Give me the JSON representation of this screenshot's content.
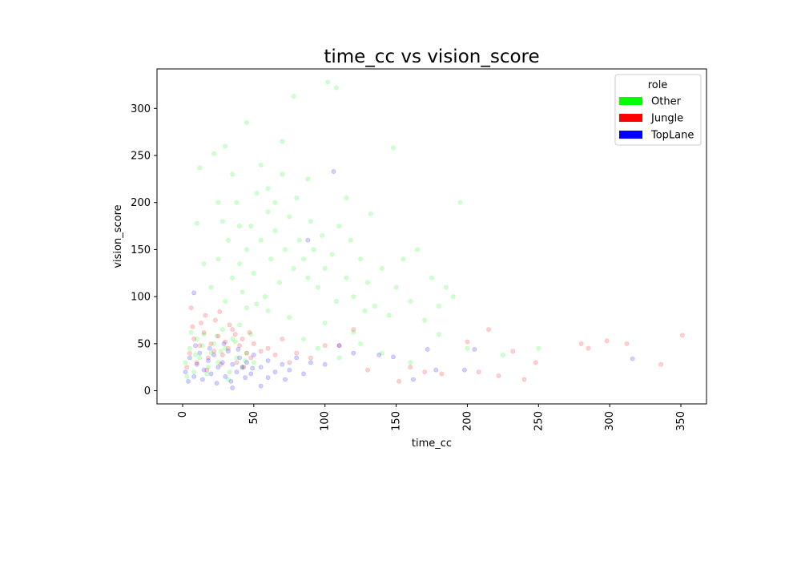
{
  "chart_data": {
    "type": "scatter",
    "title": "time_cc vs vision_score",
    "xlabel": "time_cc",
    "ylabel": "vision_score",
    "xlim": [
      -18,
      368
    ],
    "ylim": [
      -14,
      342
    ],
    "xticks": [
      0,
      50,
      100,
      150,
      200,
      250,
      300,
      350
    ],
    "yticks": [
      0,
      50,
      100,
      150,
      200,
      250,
      300
    ],
    "grid": false,
    "legend": {
      "title": "role",
      "placement": "top-right",
      "entries": [
        "Other",
        "Jungle",
        "TopLane"
      ]
    },
    "series": [
      {
        "name": "Other",
        "color": "#00ff00",
        "points": [
          [
            2,
            30
          ],
          [
            5,
            45
          ],
          [
            8,
            20
          ],
          [
            10,
            55
          ],
          [
            12,
            35
          ],
          [
            15,
            60
          ],
          [
            18,
            25
          ],
          [
            20,
            40
          ],
          [
            22,
            50
          ],
          [
            25,
            30
          ],
          [
            28,
            65
          ],
          [
            30,
            45
          ],
          [
            33,
            20
          ],
          [
            35,
            55
          ],
          [
            38,
            35
          ],
          [
            40,
            70
          ],
          [
            42,
            25
          ],
          [
            45,
            40
          ],
          [
            48,
            60
          ],
          [
            50,
            30
          ],
          [
            3,
            15
          ],
          [
            6,
            62
          ],
          [
            9,
            38
          ],
          [
            14,
            48
          ],
          [
            17,
            18
          ],
          [
            24,
            58
          ],
          [
            27,
            42
          ],
          [
            32,
            12
          ],
          [
            37,
            52
          ],
          [
            44,
            32
          ],
          [
            20,
            110
          ],
          [
            25,
            140
          ],
          [
            28,
            180
          ],
          [
            30,
            95
          ],
          [
            32,
            160
          ],
          [
            35,
            120
          ],
          [
            38,
            200
          ],
          [
            40,
            135
          ],
          [
            42,
            105
          ],
          [
            45,
            150
          ],
          [
            48,
            175
          ],
          [
            50,
            125
          ],
          [
            52,
            210
          ],
          [
            55,
            160
          ],
          [
            58,
            100
          ],
          [
            60,
            190
          ],
          [
            62,
            140
          ],
          [
            65,
            170
          ],
          [
            68,
            115
          ],
          [
            70,
            230
          ],
          [
            72,
            150
          ],
          [
            75,
            185
          ],
          [
            78,
            130
          ],
          [
            80,
            205
          ],
          [
            82,
            160
          ],
          [
            85,
            140
          ],
          [
            88,
            120
          ],
          [
            90,
            180
          ],
          [
            92,
            150
          ],
          [
            95,
            110
          ],
          [
            98,
            165
          ],
          [
            100,
            130
          ],
          [
            105,
            145
          ],
          [
            108,
            95
          ],
          [
            110,
            175
          ],
          [
            115,
            120
          ],
          [
            118,
            160
          ],
          [
            120,
            100
          ],
          [
            125,
            140
          ],
          [
            130,
            115
          ],
          [
            135,
            90
          ],
          [
            140,
            130
          ],
          [
            145,
            80
          ],
          [
            150,
            110
          ],
          [
            155,
            140
          ],
          [
            160,
            95
          ],
          [
            165,
            150
          ],
          [
            170,
            75
          ],
          [
            175,
            120
          ],
          [
            180,
            90
          ],
          [
            185,
            110
          ],
          [
            190,
            100
          ],
          [
            195,
            200
          ],
          [
            30,
            260
          ],
          [
            45,
            285
          ],
          [
            55,
            240
          ],
          [
            70,
            265
          ],
          [
            78,
            313
          ],
          [
            88,
            225
          ],
          [
            102,
            328
          ],
          [
            108,
            322
          ],
          [
            60,
            215
          ],
          [
            65,
            200
          ],
          [
            40,
            175
          ],
          [
            35,
            230
          ],
          [
            25,
            200
          ],
          [
            15,
            135
          ],
          [
            10,
            178
          ],
          [
            12,
            237
          ],
          [
            22,
            252
          ],
          [
            85,
            55
          ],
          [
            95,
            45
          ],
          [
            110,
            35
          ],
          [
            125,
            50
          ],
          [
            140,
            40
          ],
          [
            160,
            30
          ],
          [
            200,
            45
          ],
          [
            225,
            38
          ],
          [
            250,
            45
          ],
          [
            180,
            60
          ],
          [
            60,
            85
          ],
          [
            52,
            92
          ],
          [
            75,
            78
          ],
          [
            45,
            88
          ],
          [
            100,
            72
          ],
          [
            120,
            62
          ],
          [
            128,
            85
          ],
          [
            148,
            258
          ],
          [
            115,
            205
          ],
          [
            132,
            188
          ]
        ]
      },
      {
        "name": "Jungle",
        "color": "#ff0000",
        "points": [
          [
            5,
            40
          ],
          [
            8,
            55
          ],
          [
            10,
            30
          ],
          [
            12,
            48
          ],
          [
            15,
            62
          ],
          [
            18,
            35
          ],
          [
            20,
            50
          ],
          [
            22,
            42
          ],
          [
            25,
            58
          ],
          [
            28,
            38
          ],
          [
            30,
            52
          ],
          [
            32,
            45
          ],
          [
            35,
            65
          ],
          [
            38,
            30
          ],
          [
            40,
            48
          ],
          [
            42,
            55
          ],
          [
            45,
            40
          ],
          [
            48,
            35
          ],
          [
            50,
            50
          ],
          [
            55,
            42
          ],
          [
            3,
            25
          ],
          [
            7,
            68
          ],
          [
            13,
            72
          ],
          [
            17,
            22
          ],
          [
            23,
            75
          ],
          [
            27,
            28
          ],
          [
            33,
            70
          ],
          [
            37,
            60
          ],
          [
            43,
            25
          ],
          [
            47,
            62
          ],
          [
            60,
            45
          ],
          [
            65,
            38
          ],
          [
            70,
            55
          ],
          [
            75,
            30
          ],
          [
            80,
            40
          ],
          [
            90,
            35
          ],
          [
            100,
            48
          ],
          [
            110,
            48
          ],
          [
            120,
            65
          ],
          [
            130,
            22
          ],
          [
            152,
            10
          ],
          [
            160,
            25
          ],
          [
            170,
            20
          ],
          [
            182,
            18
          ],
          [
            200,
            52
          ],
          [
            208,
            20
          ],
          [
            215,
            65
          ],
          [
            222,
            16
          ],
          [
            232,
            42
          ],
          [
            240,
            12
          ],
          [
            248,
            30
          ],
          [
            280,
            50
          ],
          [
            285,
            45
          ],
          [
            298,
            53
          ],
          [
            312,
            50
          ],
          [
            336,
            28
          ],
          [
            351,
            59
          ],
          [
            6,
            88
          ],
          [
            16,
            80
          ],
          [
            26,
            84
          ]
        ]
      },
      {
        "name": "TopLane",
        "color": "#0000ff",
        "points": [
          [
            2,
            20
          ],
          [
            5,
            35
          ],
          [
            8,
            15
          ],
          [
            10,
            28
          ],
          [
            12,
            40
          ],
          [
            15,
            22
          ],
          [
            18,
            32
          ],
          [
            20,
            18
          ],
          [
            22,
            38
          ],
          [
            25,
            25
          ],
          [
            28,
            30
          ],
          [
            30,
            15
          ],
          [
            32,
            42
          ],
          [
            35,
            28
          ],
          [
            38,
            20
          ],
          [
            40,
            35
          ],
          [
            42,
            25
          ],
          [
            45,
            30
          ],
          [
            48,
            18
          ],
          [
            50,
            38
          ],
          [
            4,
            10
          ],
          [
            9,
            48
          ],
          [
            14,
            12
          ],
          [
            19,
            45
          ],
          [
            24,
            8
          ],
          [
            29,
            50
          ],
          [
            34,
            10
          ],
          [
            39,
            44
          ],
          [
            44,
            14
          ],
          [
            49,
            24
          ],
          [
            55,
            25
          ],
          [
            60,
            32
          ],
          [
            65,
            20
          ],
          [
            70,
            28
          ],
          [
            75,
            22
          ],
          [
            80,
            35
          ],
          [
            85,
            18
          ],
          [
            90,
            30
          ],
          [
            100,
            28
          ],
          [
            110,
            48
          ],
          [
            120,
            40
          ],
          [
            138,
            38
          ],
          [
            148,
            36
          ],
          [
            162,
            12
          ],
          [
            172,
            44
          ],
          [
            178,
            22
          ],
          [
            198,
            22
          ],
          [
            205,
            44
          ],
          [
            316,
            34
          ],
          [
            8,
            104
          ],
          [
            106,
            233
          ],
          [
            88,
            160
          ],
          [
            60,
            14
          ],
          [
            72,
            12
          ],
          [
            35,
            3
          ],
          [
            55,
            5
          ]
        ]
      }
    ]
  }
}
